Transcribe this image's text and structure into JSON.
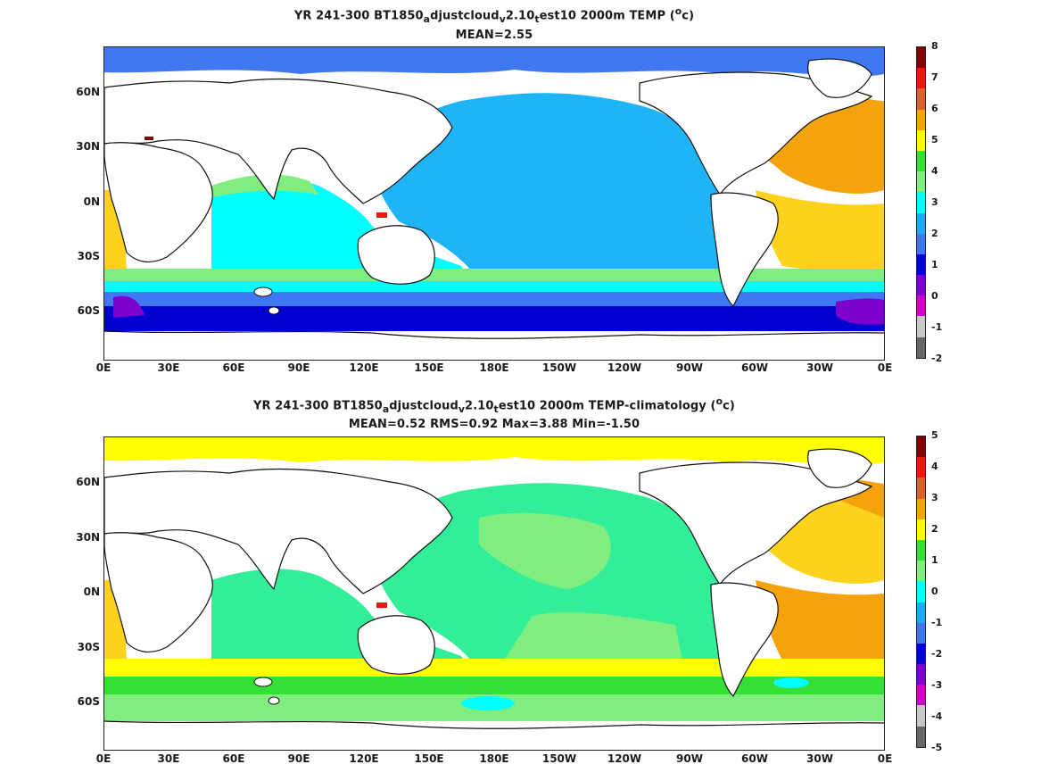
{
  "panels": [
    {
      "title_main": "YR 241-300 BT1850",
      "title_sub1": "a",
      "title_mid1": "djustcloud",
      "title_sub2": "v",
      "title_mid2": "2.10",
      "title_sub3": "t",
      "title_end": "est10 2000m TEMP (",
      "title_sup": "o",
      "title_unit_end": "c)",
      "stats": "MEAN=2.55",
      "colorbar_labels": [
        "8",
        "7",
        "6",
        "5",
        "4",
        "3",
        "2",
        "1",
        "0",
        "-1",
        "-2"
      ],
      "colorbar_colors": [
        "#7f0000",
        "#e8190f",
        "#d9632a",
        "#f5a30d",
        "#ffff00",
        "#33e033",
        "#7fee7f",
        "#00ffff",
        "#1eaaf5",
        "#3f78f0",
        "#0000d0",
        "#7e00cc",
        "#cc00cc",
        "#c8c8c8",
        "#666666"
      ],
      "colorbar_levels": [
        8,
        7,
        6,
        5,
        4,
        3,
        2,
        1,
        0,
        -1,
        -2
      ]
    },
    {
      "title_main": "YR 241-300 BT1850",
      "title_sub1": "a",
      "title_mid1": "djustcloud",
      "title_sub2": "v",
      "title_mid2": "2.10",
      "title_sub3": "t",
      "title_end": "est10 2000m TEMP-climatology (",
      "title_sup": "o",
      "title_unit_end": "c)",
      "stats": "MEAN=0.52   RMS=0.92   Max=3.88   Min=-1.50",
      "colorbar_labels": [
        "5",
        "4",
        "3",
        "2",
        "1",
        "0",
        "-1",
        "-2",
        "-3",
        "-4",
        "-5"
      ],
      "colorbar_levels": [
        5,
        4,
        3,
        2,
        1,
        0,
        -1,
        -2,
        -3,
        -4,
        -5
      ]
    }
  ],
  "axes": {
    "lon_labels": [
      "0E",
      "30E",
      "60E",
      "90E",
      "120E",
      "150E",
      "180E",
      "150W",
      "120W",
      "90W",
      "60W",
      "30W",
      "0E"
    ],
    "lat_labels": [
      "60N",
      "30N",
      "0N",
      "30S",
      "60S"
    ]
  },
  "colors": {
    "land": "#ffffff",
    "coast": "#111111",
    "panel1": {
      "pacific": "#1eb4f5",
      "atlantic_n": "#f5a30d",
      "atlantic_s": "#ffd21e",
      "indian": "#00ffff",
      "indian_n": "#7fee7f",
      "southern": "#3f78f0",
      "southern_deep": "#0000d0",
      "violet": "#7e00cc",
      "south_band": "#7fee7f",
      "arctic": "#3f78f0"
    },
    "panel2": {
      "pacific": "#33ee99",
      "pacific_2": "#7fee7f",
      "atlantic_n": "#ffd21e",
      "atlantic_s": "#f5a30d",
      "indian": "#33ee99",
      "southern_band": "#ffff00",
      "southern": "#7fee7f",
      "southern_green": "#33e033",
      "arctic": "#ffff00",
      "cyan": "#00ffff"
    }
  }
}
